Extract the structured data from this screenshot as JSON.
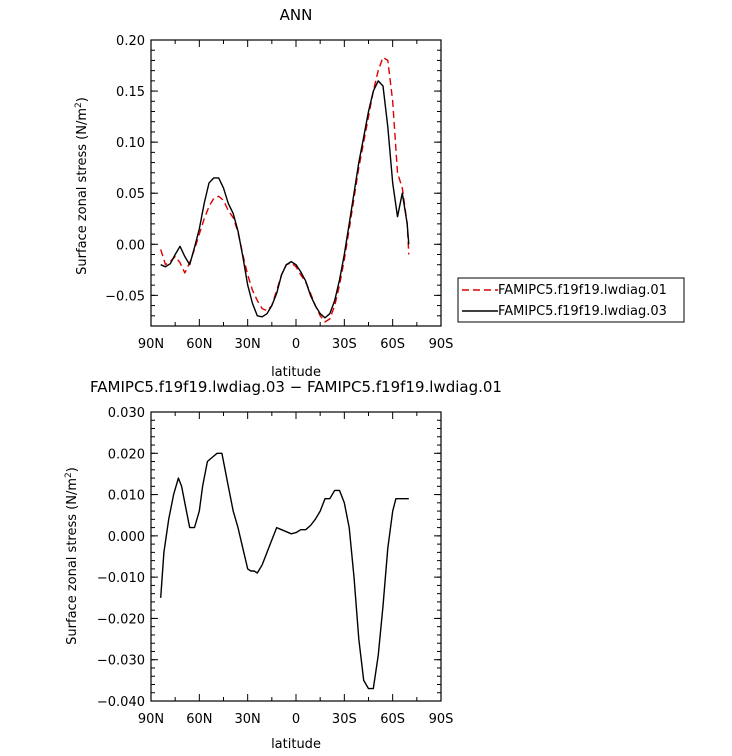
{
  "chart_data": [
    {
      "type": "line",
      "title": "ANN",
      "xlabel": "latitude",
      "ylabel": "Surface zonal stress (N/m",
      "ylabel_sup": "2",
      "ylabel_close": ")",
      "x_tick_labels": [
        "90N",
        "60N",
        "30N",
        "0",
        "30S",
        "60S",
        "90S"
      ],
      "x_tick_values": [
        90,
        60,
        30,
        0,
        -30,
        -60,
        -90
      ],
      "xlim": [
        90,
        -90
      ],
      "ylim": [
        -0.08,
        0.2
      ],
      "y_ticks": [
        -0.05,
        0.0,
        0.05,
        0.1,
        0.15,
        0.2
      ],
      "y_tick_labels": [
        "−0.05",
        "0.00",
        "0.05",
        "0.10",
        "0.15",
        "0.20"
      ],
      "grid": false,
      "legend_position": "outside-right",
      "series": [
        {
          "name": "FAMIPC5.f19f19.lwdiag.01",
          "color": "#dd0000",
          "dash": "dashed",
          "x": [
            84,
            81,
            78,
            75,
            72,
            69,
            66,
            63,
            60,
            57,
            54,
            51,
            48,
            45,
            42,
            39,
            36,
            33,
            30,
            27,
            24,
            21,
            18,
            15,
            12,
            9,
            6,
            3,
            0,
            -3,
            -6,
            -9,
            -12,
            -15,
            -18,
            -21,
            -24,
            -27,
            -30,
            -33,
            -36,
            -39,
            -42,
            -45,
            -48,
            -51,
            -54,
            -57,
            -60,
            -63,
            -66,
            -69,
            -70
          ],
          "y": [
            -0.005,
            -0.02,
            -0.017,
            -0.012,
            -0.018,
            -0.028,
            -0.018,
            -0.005,
            0.01,
            0.025,
            0.037,
            0.045,
            0.047,
            0.043,
            0.033,
            0.026,
            0.012,
            -0.01,
            -0.03,
            -0.045,
            -0.055,
            -0.063,
            -0.065,
            -0.06,
            -0.045,
            -0.03,
            -0.02,
            -0.018,
            -0.022,
            -0.03,
            -0.037,
            -0.048,
            -0.06,
            -0.07,
            -0.076,
            -0.073,
            -0.06,
            -0.04,
            -0.015,
            0.015,
            0.045,
            0.075,
            0.1,
            0.125,
            0.15,
            0.17,
            0.183,
            0.18,
            0.14,
            0.07,
            0.055,
            0.02,
            -0.01
          ]
        },
        {
          "name": "FAMIPC5.f19f19.lwdiag.03",
          "color": "#000000",
          "dash": "solid",
          "x": [
            84,
            81,
            78,
            75,
            72,
            69,
            66,
            63,
            60,
            57,
            54,
            51,
            48,
            45,
            42,
            39,
            36,
            33,
            30,
            27,
            24,
            21,
            18,
            15,
            12,
            9,
            6,
            3,
            0,
            -3,
            -6,
            -9,
            -12,
            -15,
            -18,
            -21,
            -24,
            -27,
            -30,
            -33,
            -36,
            -39,
            -42,
            -45,
            -48,
            -51,
            -54,
            -57,
            -60,
            -63,
            -66,
            -69,
            -70
          ],
          "y": [
            -0.02,
            -0.022,
            -0.019,
            -0.01,
            -0.002,
            -0.012,
            -0.02,
            -0.003,
            0.015,
            0.04,
            0.06,
            0.065,
            0.065,
            0.055,
            0.04,
            0.03,
            0.013,
            -0.012,
            -0.04,
            -0.058,
            -0.07,
            -0.071,
            -0.068,
            -0.06,
            -0.048,
            -0.03,
            -0.02,
            -0.017,
            -0.02,
            -0.027,
            -0.036,
            -0.05,
            -0.06,
            -0.068,
            -0.072,
            -0.068,
            -0.055,
            -0.035,
            -0.01,
            0.02,
            0.05,
            0.08,
            0.105,
            0.13,
            0.15,
            0.16,
            0.155,
            0.115,
            0.06,
            0.027,
            0.05,
            0.02,
            0.0
          ]
        }
      ]
    },
    {
      "type": "line",
      "title": "FAMIPC5.f19f19.lwdiag.03 − FAMIPC5.f19f19.lwdiag.01",
      "xlabel": "latitude",
      "ylabel": "Surface zonal stress (N/m",
      "ylabel_sup": "2",
      "ylabel_close": ")",
      "x_tick_labels": [
        "90N",
        "60N",
        "30N",
        "0",
        "30S",
        "60S",
        "90S"
      ],
      "x_tick_values": [
        90,
        60,
        30,
        0,
        -30,
        -60,
        -90
      ],
      "xlim": [
        90,
        -90
      ],
      "ylim": [
        -0.04,
        0.03
      ],
      "y_ticks": [
        -0.04,
        -0.03,
        -0.02,
        -0.01,
        0.0,
        0.01,
        0.02,
        0.03
      ],
      "y_tick_labels": [
        "−0.040",
        "−0.030",
        "−0.020",
        "−0.010",
        "0.000",
        "0.010",
        "0.020",
        "0.030"
      ],
      "grid": false,
      "series": [
        {
          "color": "#000000",
          "dash": "solid",
          "x": [
            84,
            82,
            79,
            76,
            73,
            71,
            69,
            66,
            63,
            60,
            58,
            55,
            52,
            49,
            46,
            44,
            42,
            39,
            36,
            33,
            30,
            28,
            26,
            24,
            21,
            18,
            15,
            12,
            9,
            6,
            3,
            0,
            -3,
            -6,
            -9,
            -12,
            -15,
            -18,
            -21,
            -24,
            -27,
            -30,
            -33,
            -36,
            -39,
            -42,
            -45,
            -48,
            -51,
            -54,
            -57,
            -60,
            -62,
            -64,
            -66,
            -68,
            -70
          ],
          "y": [
            -0.015,
            -0.004,
            0.004,
            0.01,
            0.014,
            0.012,
            0.008,
            0.002,
            0.002,
            0.006,
            0.012,
            0.018,
            0.019,
            0.02,
            0.02,
            0.016,
            0.012,
            0.006,
            0.002,
            -0.003,
            -0.008,
            -0.0085,
            -0.0085,
            -0.009,
            -0.007,
            -0.004,
            -0.001,
            0.002,
            0.0015,
            0.001,
            0.0005,
            0.0008,
            0.0015,
            0.0015,
            0.0025,
            0.004,
            0.006,
            0.009,
            0.009,
            0.011,
            0.011,
            0.008,
            0.002,
            -0.01,
            -0.025,
            -0.035,
            -0.037,
            -0.037,
            -0.029,
            -0.017,
            -0.003,
            0.006,
            0.009,
            0.009,
            0.009,
            0.009,
            0.009
          ]
        }
      ]
    }
  ]
}
